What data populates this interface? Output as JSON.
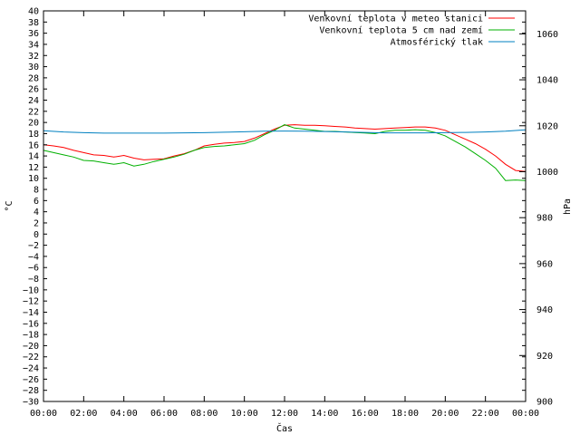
{
  "chart_data": {
    "type": "line",
    "xlabel": "Čas",
    "ylabel": "°C",
    "y2label": "hPa",
    "x_ticks": [
      "00:00",
      "02:00",
      "04:00",
      "06:00",
      "08:00",
      "10:00",
      "12:00",
      "14:00",
      "16:00",
      "18:00",
      "20:00",
      "22:00",
      "00:00"
    ],
    "xlim_hours": [
      0,
      24
    ],
    "ylim": [
      -30,
      40
    ],
    "y_tick_step": 2,
    "y2lim": [
      900,
      1070
    ],
    "y2_ticks": [
      900,
      920,
      940,
      960,
      980,
      1000,
      1020,
      1040,
      1060
    ],
    "grid": false,
    "legend_position": "top-right",
    "series": [
      {
        "name": "Venkovní teplota v meteo stanici",
        "axis": "left",
        "color": "#ff0000",
        "x": [
          0,
          0.5,
          1,
          1.5,
          2,
          2.5,
          3,
          3.5,
          4,
          4.5,
          5,
          5.5,
          6,
          6.5,
          7,
          7.5,
          8,
          8.5,
          9,
          9.5,
          10,
          10.5,
          11,
          11.5,
          12,
          12.5,
          13,
          13.5,
          14,
          14.5,
          15,
          15.5,
          16,
          16.5,
          17,
          17.5,
          18,
          18.5,
          19,
          19.5,
          20,
          20.5,
          21,
          21.5,
          22,
          22.5,
          23,
          23.5,
          24
        ],
        "values": [
          16.0,
          15.8,
          15.5,
          15.0,
          14.6,
          14.2,
          14.1,
          13.8,
          14.1,
          13.6,
          13.3,
          13.4,
          13.5,
          14.0,
          14.4,
          15.0,
          15.8,
          16.1,
          16.3,
          16.4,
          16.6,
          17.2,
          18.0,
          18.8,
          19.5,
          19.6,
          19.5,
          19.5,
          19.4,
          19.3,
          19.2,
          19.0,
          18.9,
          18.8,
          18.9,
          19.0,
          19.1,
          19.2,
          19.2,
          19.0,
          18.6,
          17.8,
          17.0,
          16.2,
          15.2,
          14.0,
          12.5,
          11.4,
          11.2
        ]
      },
      {
        "name": "Venkovní teplota 5 cm nad zemí",
        "axis": "left",
        "color": "#00b000",
        "x": [
          0,
          0.5,
          1,
          1.5,
          2,
          2.5,
          3,
          3.5,
          4,
          4.5,
          5,
          5.5,
          6,
          6.5,
          7,
          7.5,
          8,
          8.5,
          9,
          9.5,
          10,
          10.5,
          11,
          11.5,
          12,
          12.5,
          13,
          13.5,
          14,
          14.5,
          15,
          15.5,
          16,
          16.5,
          17,
          17.5,
          18,
          18.5,
          19,
          19.5,
          20,
          20.5,
          21,
          21.5,
          22,
          22.5,
          23,
          23.5,
          24
        ],
        "values": [
          15.0,
          14.6,
          14.2,
          13.8,
          13.2,
          13.1,
          12.8,
          12.5,
          12.8,
          12.2,
          12.5,
          13.0,
          13.4,
          13.8,
          14.3,
          15.0,
          15.5,
          15.7,
          15.8,
          16.0,
          16.2,
          16.8,
          17.8,
          18.6,
          19.6,
          19.0,
          18.8,
          18.6,
          18.4,
          18.4,
          18.3,
          18.2,
          18.1,
          18.0,
          18.4,
          18.6,
          18.6,
          18.7,
          18.6,
          18.2,
          17.6,
          16.6,
          15.6,
          14.4,
          13.2,
          11.8,
          9.6,
          9.7,
          9.6
        ]
      },
      {
        "name": "Atmosférický tlak",
        "axis": "right",
        "color": "#0080c0",
        "x": [
          0,
          1,
          2,
          3,
          4,
          5,
          6,
          7,
          8,
          9,
          10,
          11,
          12,
          13,
          14,
          15,
          16,
          17,
          18,
          19,
          20,
          21,
          22,
          23,
          24
        ],
        "values": [
          1017.8,
          1017.3,
          1017.0,
          1016.8,
          1016.8,
          1016.8,
          1016.8,
          1016.9,
          1017.0,
          1017.2,
          1017.4,
          1017.6,
          1017.7,
          1017.6,
          1017.5,
          1017.3,
          1017.1,
          1016.9,
          1016.9,
          1016.9,
          1017.0,
          1017.1,
          1017.3,
          1017.6,
          1018.2
        ]
      }
    ]
  }
}
